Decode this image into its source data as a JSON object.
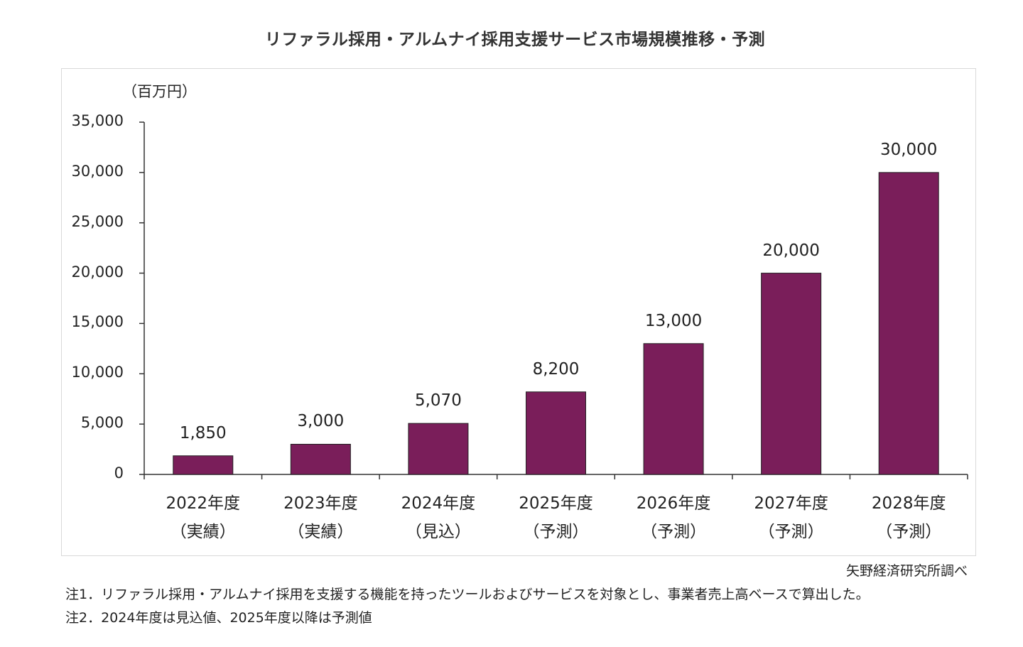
{
  "chart_data": {
    "type": "bar",
    "title": "リファラル採用・アルムナイ採用支援サービス市場規模推移・予測",
    "ylabel": "（百万円）",
    "xlabel": "",
    "ylim": [
      0,
      35000
    ],
    "y_ticks": [
      "0",
      "5,000",
      "10,000",
      "15,000",
      "20,000",
      "25,000",
      "30,000",
      "35,000"
    ],
    "y_tick_values": [
      0,
      5000,
      10000,
      15000,
      20000,
      25000,
      30000,
      35000
    ],
    "categories": [
      {
        "year": "2022年度",
        "status": "（実績）"
      },
      {
        "year": "2023年度",
        "status": "（実績）"
      },
      {
        "year": "2024年度",
        "status": "（見込）"
      },
      {
        "year": "2025年度",
        "status": "（予測）"
      },
      {
        "year": "2026年度",
        "status": "（予測）"
      },
      {
        "year": "2027年度",
        "status": "（予測）"
      },
      {
        "year": "2028年度",
        "status": "（予測）"
      }
    ],
    "values": [
      1850,
      3000,
      5070,
      8200,
      13000,
      20000,
      30000
    ],
    "value_labels": [
      "1,850",
      "3,000",
      "5,070",
      "8,200",
      "13,000",
      "20,000",
      "30,000"
    ],
    "bar_color": "#7a1e5a",
    "grid": false
  },
  "source": "矢野経済研究所調べ",
  "notes": [
    "注1．リファラル採用・アルムナイ採用を支援する機能を持ったツールおよびサービスを対象とし、事業者売上高ベースで算出した。",
    "注2．2024年度は見込値、2025年度以降は予測値"
  ]
}
